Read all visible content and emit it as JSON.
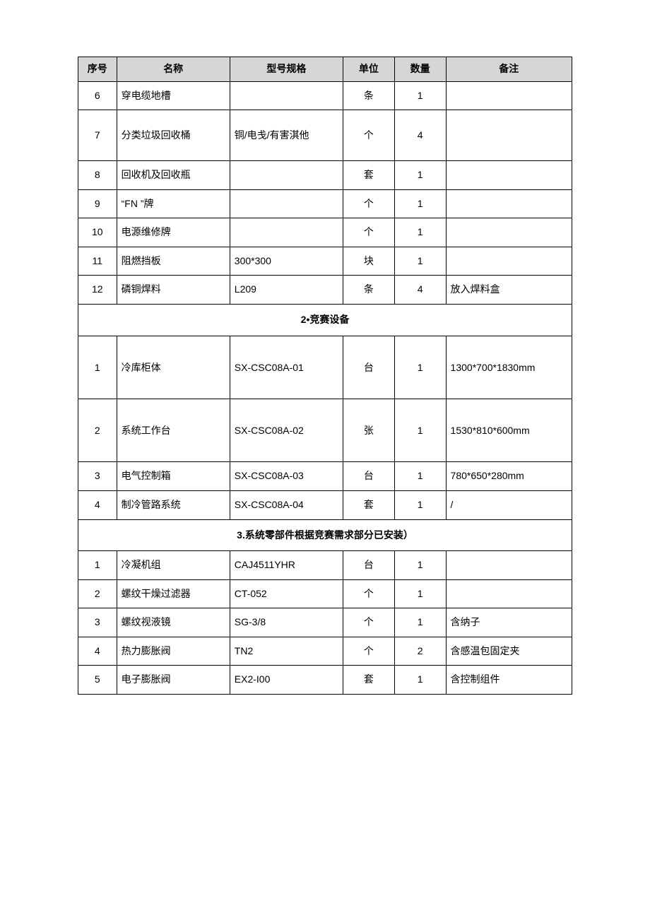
{
  "headers": {
    "seq": "序号",
    "name": "名称",
    "spec": "型号规格",
    "unit": "单位",
    "qty": "数量",
    "note": "备注"
  },
  "section1_rows": [
    {
      "seq": "6",
      "name": "穿电缆地槽",
      "spec": "",
      "unit": "条",
      "qty": "1",
      "note": ""
    },
    {
      "seq": "7",
      "name": "分类垃圾回收桶",
      "spec": "铜/电戋/有害淇他",
      "unit": "个",
      "qty": "4",
      "note": ""
    },
    {
      "seq": "8",
      "name": "回收机及回收瓶",
      "spec": "",
      "unit": "套",
      "qty": "1",
      "note": ""
    },
    {
      "seq": "9",
      "name": "“FN ”牌",
      "spec": "",
      "unit": "个",
      "qty": "1",
      "note": ""
    },
    {
      "seq": "10",
      "name": "电源维修牌",
      "spec": "",
      "unit": "个",
      "qty": "1",
      "note": ""
    },
    {
      "seq": "11",
      "name": "阻燃挡板",
      "spec": "300*300",
      "unit": "块",
      "qty": "1",
      "note": ""
    },
    {
      "seq": "12",
      "name": "磷铜焊料",
      "spec": "L209",
      "unit": "条",
      "qty": "4",
      "note": "放入焊料盒"
    }
  ],
  "section2_title": "2•竞赛设备",
  "section2_rows": [
    {
      "seq": "1",
      "name": "冷库柜体",
      "spec": "SX-CSC08A-01",
      "unit": "台",
      "qty": "1",
      "note": "1300*700*1830mm"
    },
    {
      "seq": "2",
      "name": "系统工作台",
      "spec": "SX-CSC08A-02",
      "unit": "张",
      "qty": "1",
      "note": "1530*810*600mm"
    },
    {
      "seq": "3",
      "name": "电气控制箱",
      "spec": "SX-CSC08A-03",
      "unit": "台",
      "qty": "1",
      "note": "780*650*280mm"
    },
    {
      "seq": "4",
      "name": "制冷管路系统",
      "spec": "SX-CSC08A-04",
      "unit": "套",
      "qty": "1",
      "note": "/"
    }
  ],
  "section3_title": "3.系统零部件根据竞赛需求部分已安装）",
  "section3_rows": [
    {
      "seq": "1",
      "name": "冷凝机组",
      "spec": "CAJ4511YHR",
      "unit": "台",
      "qty": "1",
      "note": ""
    },
    {
      "seq": "2",
      "name": "螺纹干燥过滤器",
      "spec": "CT-052",
      "unit": "个",
      "qty": "1",
      "note": ""
    },
    {
      "seq": "3",
      "name": "螺纹视液镜",
      "spec": "SG-3/8",
      "unit": "个",
      "qty": "1",
      "note": "含纳子"
    },
    {
      "seq": "4",
      "name": "热力膨胀阀",
      "spec": "TN2",
      "unit": "个",
      "qty": "2",
      "note": "含感温包固定夹"
    },
    {
      "seq": "5",
      "name": "电子膨胀阀",
      "spec": "EX2-I00",
      "unit": "套",
      "qty": "1",
      "note": "含控制组件"
    }
  ]
}
